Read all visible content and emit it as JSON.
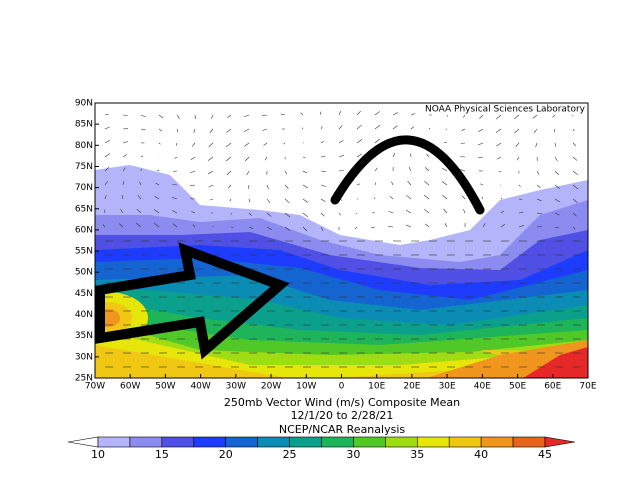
{
  "map": {
    "credit": "NOAA Physical Sciences Laboratory",
    "lat_labels": [
      "90N",
      "85N",
      "80N",
      "75N",
      "70N",
      "65N",
      "60N",
      "55N",
      "50N",
      "45N",
      "40N",
      "35N",
      "30N",
      "25N"
    ],
    "lon_labels": [
      "70W",
      "60W",
      "50W",
      "40W",
      "30W",
      "20W",
      "10W",
      "0",
      "10E",
      "20E",
      "30E",
      "40E",
      "50E",
      "60E",
      "70E"
    ]
  },
  "caption": {
    "line1": "250mb Vector Wind (m/s) Composite Mean",
    "line2": "12/1/20  to 2/28/21",
    "line3": "NCEP/NCAR Reanalysis"
  },
  "colorbar": {
    "labels": [
      10,
      15,
      20,
      25,
      30,
      35,
      40,
      45
    ]
  }
}
